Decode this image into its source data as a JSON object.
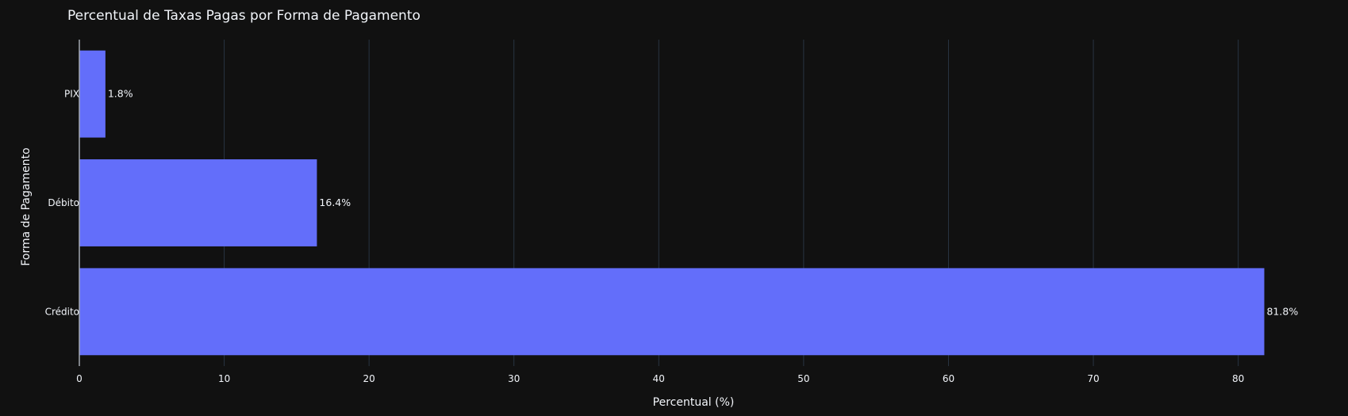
{
  "chart_data": {
    "type": "bar",
    "orientation": "horizontal",
    "title": "Percentual de Taxas Pagas por Forma de Pagamento",
    "xlabel": "Percentual (%)",
    "ylabel": "Forma de Pagamento",
    "categories": [
      "Crédito",
      "Débito",
      "PIX"
    ],
    "values": [
      81.8,
      16.4,
      1.8
    ],
    "data_labels": [
      "81.8%",
      "16.4%",
      "1.8%"
    ],
    "x_ticks": [
      0,
      10,
      20,
      30,
      40,
      50,
      60,
      70,
      80
    ],
    "xlim": [
      0,
      86.1
    ],
    "grid": true,
    "bar_color": "#636efa",
    "background_color": "#111111",
    "grid_color": "#283442",
    "text_color": "#f2f5fa"
  }
}
